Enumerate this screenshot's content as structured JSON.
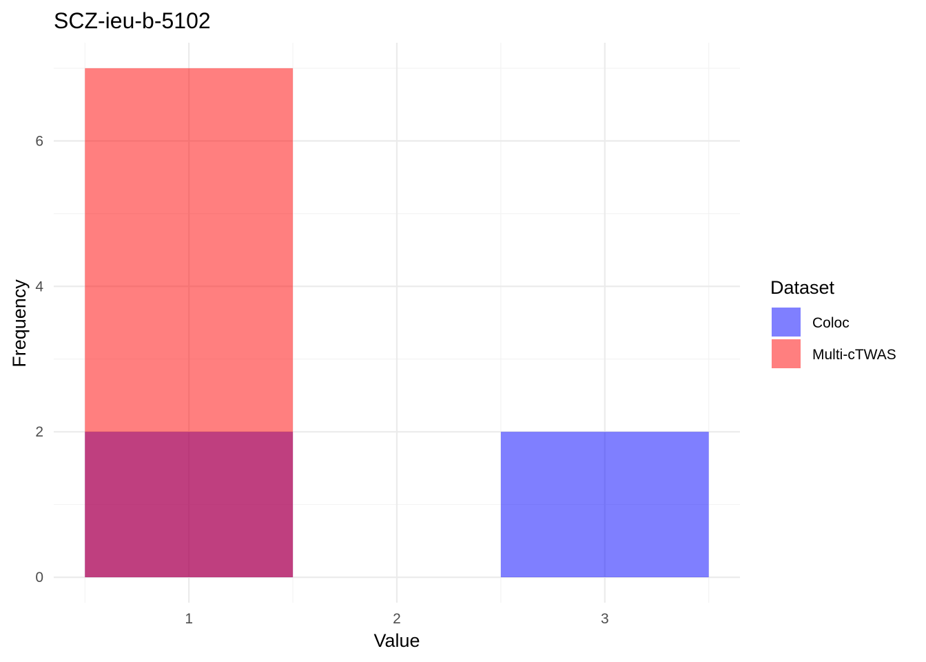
{
  "chart_data": {
    "type": "bar",
    "title": "SCZ-ieu-b-5102",
    "xlabel": "Value",
    "ylabel": "Frequency",
    "x_ticks": [
      1,
      2,
      3
    ],
    "y_ticks": [
      0,
      2,
      4,
      6
    ],
    "xlim": [
      0.35,
      3.65
    ],
    "ylim": [
      -0.35,
      7.35
    ],
    "bin_width": 1,
    "grid": true,
    "bar_opacity": 0.5,
    "series": [
      {
        "name": "Coloc",
        "color": "#0000ff",
        "x": [
          1,
          2,
          3
        ],
        "values": [
          2,
          0,
          2
        ]
      },
      {
        "name": "Multi-cTWAS",
        "color": "#ff0000",
        "x": [
          1,
          2,
          3
        ],
        "values": [
          7,
          0,
          0
        ]
      }
    ],
    "legend": {
      "title": "Dataset",
      "position": "right"
    }
  }
}
